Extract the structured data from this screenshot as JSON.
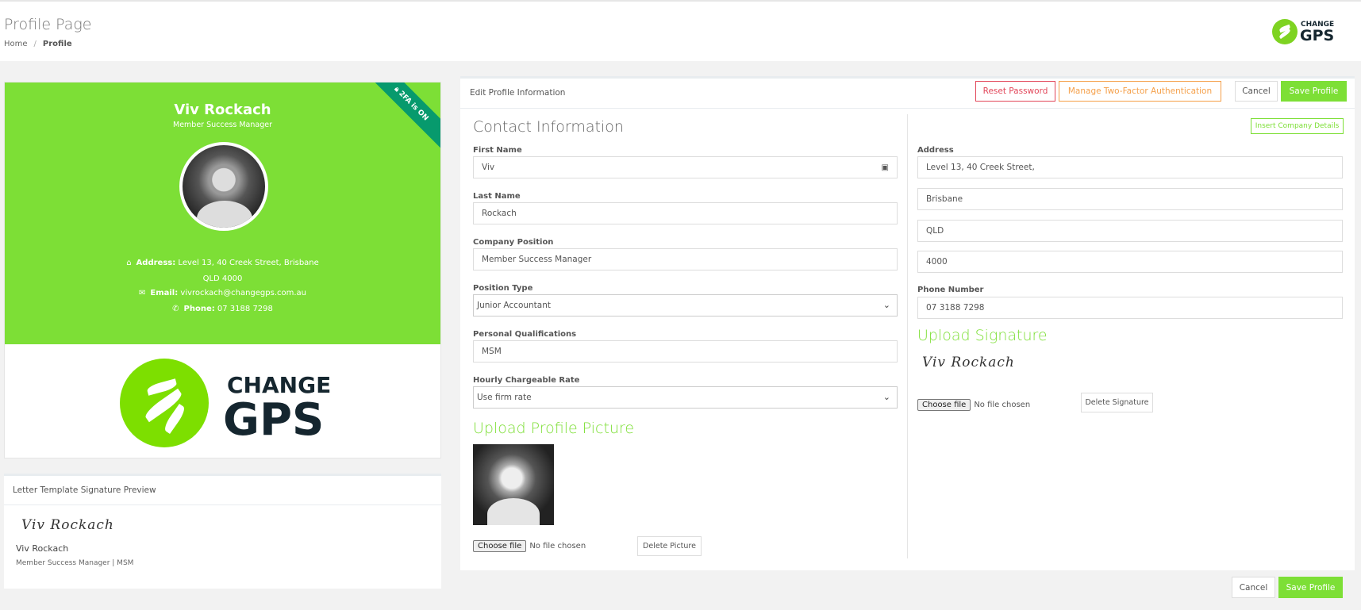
{
  "header": {
    "title": "Profile Page",
    "breadcrumb": [
      {
        "label": "Home"
      },
      {
        "label": "Profile"
      }
    ],
    "logo": {
      "line1": "CHANGE",
      "line2": "GPS"
    }
  },
  "profile_card": {
    "name": "Viv Rockach",
    "role": "Member Success Manager",
    "badge": "2FA is ON",
    "address_label": "Address:",
    "address_line1": "Level 13, 40 Creek Street, Brisbane",
    "address_line2": "QLD 4000",
    "email_label": "Email:",
    "email": "vivrockach@changegps.com.au",
    "phone_label": "Phone:",
    "phone": "07 3188 7298",
    "logo": {
      "line1": "CHANGE",
      "line2": "GPS"
    }
  },
  "signature_preview": {
    "title": "Letter Template Signature Preview",
    "signature": "Viv Rockach",
    "name": "Viv Rockach",
    "subtitle": "Member Success Manager | MSM"
  },
  "panel": {
    "title": "Edit Profile Information",
    "reset_password": "Reset Password",
    "manage_2fa": "Manage Two-Factor Authentication",
    "cancel": "Cancel",
    "save": "Save Profile",
    "contact_heading": "Contact Information",
    "insert_company": "Insert Company Details",
    "fields": {
      "first_name": {
        "label": "First Name",
        "value": "Viv"
      },
      "last_name": {
        "label": "Last Name",
        "value": "Rockach"
      },
      "company_position": {
        "label": "Company Position",
        "value": "Member Success Manager"
      },
      "position_type": {
        "label": "Position Type",
        "value": "Junior Accountant"
      },
      "qualifications": {
        "label": "Personal Qualifications",
        "value": "MSM"
      },
      "hourly_rate": {
        "label": "Hourly Chargeable Rate",
        "value": "Use firm rate"
      },
      "address": {
        "label": "Address",
        "line1": "Level 13, 40 Creek Street,",
        "city": "Brisbane",
        "state": "QLD",
        "postcode": "4000"
      },
      "phone": {
        "label": "Phone Number",
        "value": "07 3188 7298"
      }
    },
    "upload_picture": {
      "heading": "Upload Profile Picture",
      "choose": "Choose file",
      "no_file": "No file chosen",
      "delete": "Delete Picture"
    },
    "upload_signature": {
      "heading": "Upload Signature",
      "signature": "Viv Rockach",
      "choose": "Choose file",
      "no_file": "No file chosen",
      "delete": "Delete Signature"
    }
  },
  "footer": {
    "cancel": "Cancel",
    "save": "Save Profile"
  },
  "colors": {
    "brand_green": "#7ddf36",
    "ribbon": "#079a6d",
    "danger": "#e2475a",
    "warning": "#f5a04a"
  }
}
